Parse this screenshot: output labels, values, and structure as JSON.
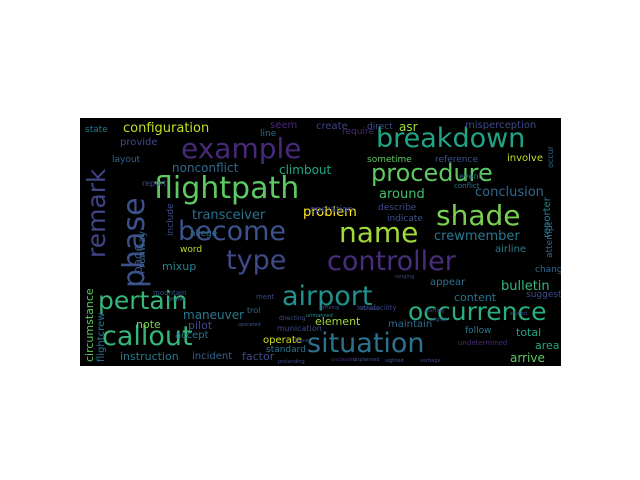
{
  "words": [
    {
      "text": "flightpath",
      "color": "#5ec962"
    },
    {
      "text": "become",
      "color": "#3b528b"
    },
    {
      "text": "controller",
      "color": "#472d7b"
    },
    {
      "text": "airport",
      "color": "#21918c"
    },
    {
      "text": "situation",
      "color": "#2c728e"
    },
    {
      "text": "callout",
      "color": "#35b779"
    },
    {
      "text": "occurrence",
      "color": "#28ae80"
    },
    {
      "text": "pertain",
      "color": "#35b779"
    },
    {
      "text": "phase",
      "color": "#3b528b"
    },
    {
      "text": "shade",
      "color": "#7ad151"
    },
    {
      "text": "name",
      "color": "#a0da39"
    },
    {
      "text": "type",
      "color": "#3e4a89"
    },
    {
      "text": "example",
      "color": "#482878"
    },
    {
      "text": "breakdown",
      "color": "#20a486"
    },
    {
      "text": "procedure",
      "color": "#5ec962"
    },
    {
      "text": "remark",
      "color": "#414487"
    },
    {
      "text": "configuration",
      "color": "#c2df23"
    },
    {
      "text": "problem",
      "color": "#fde725"
    },
    {
      "text": "transceiver",
      "color": "#2c728e"
    },
    {
      "text": "around",
      "color": "#44bf70"
    },
    {
      "text": "conclusion",
      "color": "#31688e"
    },
    {
      "text": "crewmember",
      "color": "#2a788e"
    },
    {
      "text": "bulletin",
      "color": "#35b779"
    },
    {
      "text": "nonconflict",
      "color": "#31688e"
    },
    {
      "text": "climbout",
      "color": "#22a884"
    },
    {
      "text": "maneuver",
      "color": "#2a788e"
    },
    {
      "text": "page",
      "color": "#3b528b"
    },
    {
      "text": "mixup",
      "color": "#26828e"
    },
    {
      "text": "runway",
      "color": "#33638d"
    },
    {
      "text": "airline",
      "color": "#287d8e"
    },
    {
      "text": "content",
      "color": "#2c728e"
    },
    {
      "text": "element",
      "color": "#a0da39"
    },
    {
      "text": "arrive",
      "color": "#5ec962"
    },
    {
      "text": "total",
      "color": "#20a486"
    },
    {
      "text": "area",
      "color": "#22a884"
    },
    {
      "text": "factor",
      "color": "#3e4a89"
    },
    {
      "text": "instruction",
      "color": "#2a788e"
    },
    {
      "text": "incident",
      "color": "#33638d"
    },
    {
      "text": "pilot",
      "color": "#3e4a89"
    },
    {
      "text": "operate",
      "color": "#d2e21b"
    },
    {
      "text": "standard",
      "color": "#2c728e"
    },
    {
      "text": "maintain",
      "color": "#31688e"
    },
    {
      "text": "note",
      "color": "#7ad151"
    },
    {
      "text": "accept",
      "color": "#2a788e"
    },
    {
      "text": "word",
      "color": "#b5de2b"
    },
    {
      "text": "asr",
      "color": "#a0da39"
    },
    {
      "text": "state",
      "color": "#2a788e"
    },
    {
      "text": "provide",
      "color": "#3e4a89"
    },
    {
      "text": "layout",
      "color": "#33638d"
    },
    {
      "text": "seem",
      "color": "#482878"
    },
    {
      "text": "line",
      "color": "#31688e"
    },
    {
      "text": "create",
      "color": "#414487"
    },
    {
      "text": "direct",
      "color": "#3e4a89"
    },
    {
      "text": "misperception",
      "color": "#3e4a89"
    },
    {
      "text": "sometime",
      "color": "#5ec962"
    },
    {
      "text": "reference",
      "color": "#3b528b"
    },
    {
      "text": "involve",
      "color": "#c2df23"
    },
    {
      "text": "event",
      "color": "#2c728e"
    },
    {
      "text": "conflict",
      "color": "#2a788e"
    },
    {
      "text": "describe",
      "color": "#3e4a89"
    },
    {
      "text": "indicate",
      "color": "#3b528b"
    },
    {
      "text": "appear",
      "color": "#2c728e"
    },
    {
      "text": "change",
      "color": "#31688e"
    },
    {
      "text": "suggest",
      "color": "#3e4a89"
    },
    {
      "text": "follow",
      "color": "#2a788e"
    },
    {
      "text": "undetermined",
      "color": "#482878"
    },
    {
      "text": "include",
      "color": "#3b528b"
    },
    {
      "text": "allege",
      "color": "#2c728e"
    },
    {
      "text": "report",
      "color": "#3e4a89"
    },
    {
      "text": "require",
      "color": "#482878"
    },
    {
      "text": "operation",
      "color": "#3e4a89"
    },
    {
      "text": "reporter",
      "color": "#287d8e"
    },
    {
      "text": "attempt",
      "color": "#31688e"
    },
    {
      "text": "circumstance",
      "color": "#5ec962"
    },
    {
      "text": "flightcrew",
      "color": "#2c728e"
    },
    {
      "text": "occur",
      "color": "#31688e"
    },
    {
      "text": "ment",
      "color": "#3e4a89"
    },
    {
      "text": "trol",
      "color": "#2c728e"
    },
    {
      "text": "munication",
      "color": "#3e4a89"
    },
    {
      "text": "directing",
      "color": "#3b528b"
    },
    {
      "text": "intrafacility",
      "color": "#3e4a89"
    },
    {
      "text": "mountain",
      "color": "#3b528b"
    },
    {
      "text": "offered",
      "color": "#31688e"
    },
    {
      "text": "arriving",
      "color": "#3b528b"
    },
    {
      "text": "unmanned",
      "color": "#21918c"
    },
    {
      "text": "operated",
      "color": "#3b528b"
    },
    {
      "text": "place",
      "color": "#3e4a89"
    },
    {
      "text": "english",
      "color": "#3b528b"
    },
    {
      "text": "starting",
      "color": "#3e4a89"
    },
    {
      "text": "verbage",
      "color": "#3e4a89"
    },
    {
      "text": "sighted",
      "color": "#3b528b"
    },
    {
      "text": "uncleared",
      "color": "#482878"
    },
    {
      "text": "afterward",
      "color": "#3e4a89"
    },
    {
      "text": "prelanding",
      "color": "#3e4a89"
    },
    {
      "text": "eluded",
      "color": "#3b528b"
    },
    {
      "text": "ranging",
      "color": "#3e4a89"
    },
    {
      "text": "unplanned",
      "color": "#3b528b"
    }
  ]
}
